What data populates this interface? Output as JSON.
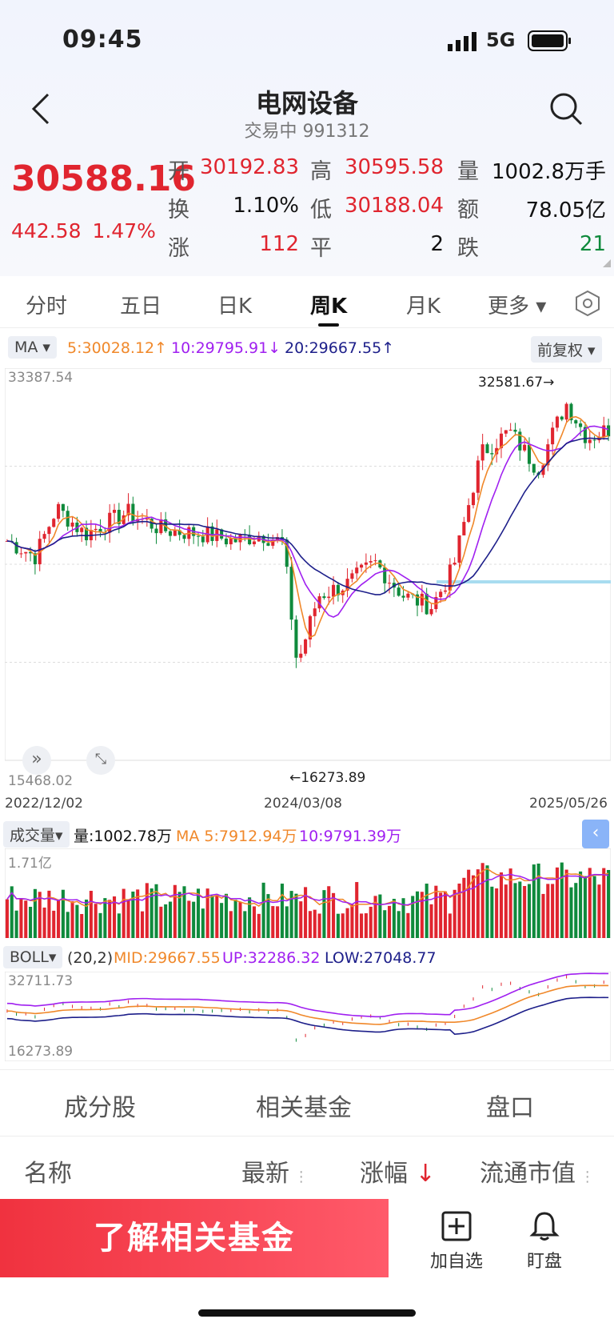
{
  "status": {
    "time": "09:45",
    "network": "5G"
  },
  "header": {
    "title": "电网设备",
    "subtitle": "交易中 991312"
  },
  "quote": {
    "price": "30588.16",
    "change": "442.58",
    "change_pct": "1.47%"
  },
  "stats": [
    {
      "label": "开",
      "value": "30192.83",
      "color": "red"
    },
    {
      "label": "高",
      "value": "30595.58",
      "color": "red"
    },
    {
      "label": "量",
      "value": "1002.8万手",
      "color": "black"
    },
    {
      "label": "换",
      "value": "1.10%",
      "color": "black"
    },
    {
      "label": "低",
      "value": "30188.04",
      "color": "red"
    },
    {
      "label": "额",
      "value": "78.05亿",
      "color": "black"
    },
    {
      "label": "涨",
      "value": "112",
      "color": "red"
    },
    {
      "label": "平",
      "value": "2",
      "color": "black"
    },
    {
      "label": "跌",
      "value": "21",
      "color": "green"
    }
  ],
  "tabs": [
    "分时",
    "五日",
    "日K",
    "周K",
    "月K",
    "更多 ▾"
  ],
  "active_tab": "周K",
  "ma": {
    "selector": "MA ▾",
    "ma5": "5:30028.12↑",
    "ma10": "10:29795.91↓",
    "ma20": "20:29667.55↑",
    "adjust": "前复权 ▾"
  },
  "kline": {
    "y_top": "33387.54",
    "y_bottom": "15468.02",
    "high_note": "32581.67→",
    "low_note": "←16273.89",
    "dates": [
      "2022/12/02",
      "2024/03/08",
      "2025/05/26"
    ]
  },
  "volume": {
    "selector": "成交量▾",
    "vol": "量:1002.78万",
    "ma5": "MA 5:7912.94万",
    "ma10": "10:9791.39万",
    "y_top": "1.71亿"
  },
  "boll": {
    "selector": "BOLL▾",
    "params": "(20,2)",
    "mid": "MID:29667.55",
    "up": "UP:32286.32",
    "low": "LOW:27048.77",
    "y_top": "32711.73",
    "y_bottom": "16273.89"
  },
  "bottom_tabs": [
    "成分股",
    "相关基金",
    "盘口"
  ],
  "list_header": {
    "name": "名称",
    "latest": "最新",
    "change": "涨幅",
    "cap": "流通市值"
  },
  "cta": "了解相关基金",
  "actions": [
    "加自选",
    "盯盘"
  ],
  "colors": {
    "up": "#e0252f",
    "down": "#0f8a3c",
    "ma5": "#f0882a",
    "ma10": "#a020f0",
    "ma20": "#1d1f8a"
  }
}
